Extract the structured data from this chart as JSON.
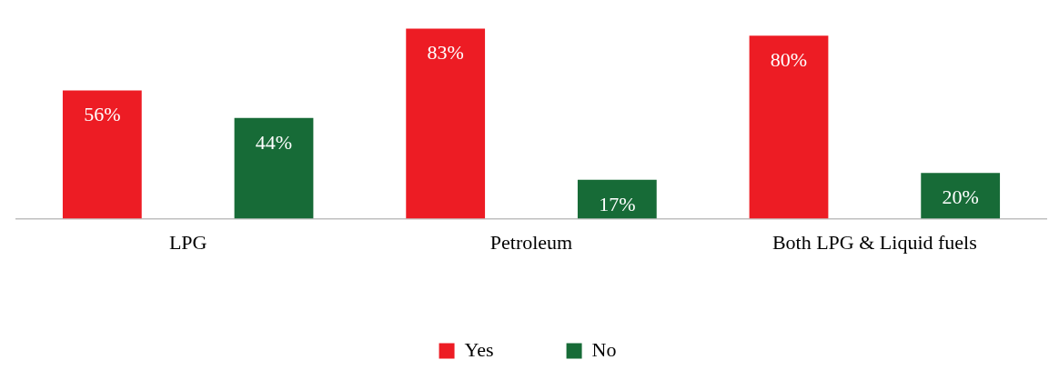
{
  "chart_data": {
    "type": "bar",
    "categories": [
      "LPG",
      "Petroleum",
      "Both LPG & Liquid fuels"
    ],
    "series": [
      {
        "name": "Yes",
        "color": "#ed1c24",
        "values": [
          56,
          83,
          80
        ],
        "value_labels": [
          "56%",
          "83%",
          "80%"
        ]
      },
      {
        "name": "No",
        "color": "#176b37",
        "values": [
          44,
          17,
          20
        ],
        "value_labels": [
          "44%",
          "17%",
          "20%"
        ]
      }
    ],
    "legend": "bottom",
    "grid": false,
    "tick_labels": "x"
  }
}
